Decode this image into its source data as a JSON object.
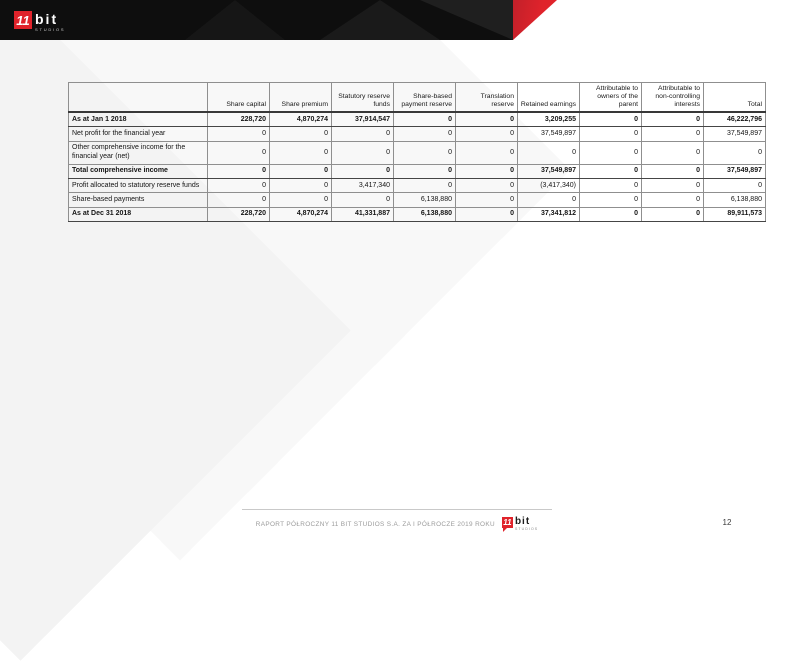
{
  "brand": {
    "logo_number": "11",
    "logo_word": "bit",
    "logo_sub": "studios"
  },
  "colors": {
    "brand_red": "#e0232b",
    "header_bar": "#0e0e0e"
  },
  "table": {
    "columns": [
      "",
      "Share capital",
      "Share premium",
      "Statutory reserve funds",
      "Share-based payment reserve",
      "Translation reserve",
      "Retained earnings",
      "Attributable to owners of the parent",
      "Attributable to non-controlling interests",
      "Total"
    ],
    "rows": [
      {
        "label": "As at Jan 1 2018",
        "bold": true,
        "values": [
          "228,720",
          "4,870,274",
          "37,914,547",
          "0",
          "0",
          "3,209,255",
          "0",
          "0",
          "46,222,796"
        ]
      },
      {
        "label": "Net profit for the financial year",
        "bold": false,
        "values": [
          "0",
          "0",
          "0",
          "0",
          "0",
          "37,549,897",
          "0",
          "0",
          "37,549,897"
        ]
      },
      {
        "label": "Other comprehensive income for the financial year (net)",
        "bold": false,
        "values": [
          "0",
          "0",
          "0",
          "0",
          "0",
          "0",
          "0",
          "0",
          "0"
        ]
      },
      {
        "label": "Total comprehensive income",
        "bold": true,
        "values": [
          "0",
          "0",
          "0",
          "0",
          "0",
          "37,549,897",
          "0",
          "0",
          "37,549,897"
        ]
      },
      {
        "label": "Profit allocated to statutory reserve funds",
        "bold": false,
        "values": [
          "0",
          "0",
          "3,417,340",
          "0",
          "0",
          "(3,417,340)",
          "0",
          "0",
          "0"
        ]
      },
      {
        "label": "Share-based payments",
        "bold": false,
        "values": [
          "0",
          "0",
          "0",
          "6,138,880",
          "0",
          "0",
          "0",
          "0",
          "6,138,880"
        ]
      },
      {
        "label": "As at Dec 31 2018",
        "bold": true,
        "values": [
          "228,720",
          "4,870,274",
          "41,331,887",
          "6,138,880",
          "0",
          "37,341,812",
          "0",
          "0",
          "89,911,573"
        ]
      }
    ]
  },
  "footer": {
    "report_title": "RAPORT PÓŁROCZNY 11 BIT STUDIOS S.A. ZA I PÓŁROCZE 2019 ROKU",
    "page_number": "12"
  }
}
